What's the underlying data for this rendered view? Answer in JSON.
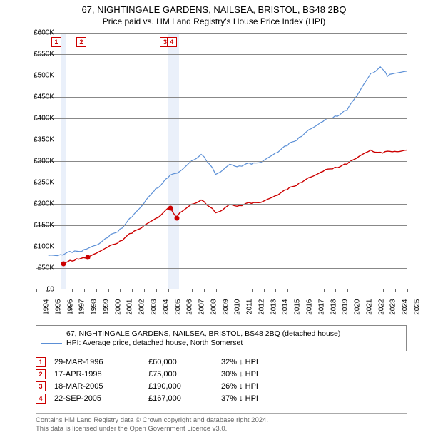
{
  "title": "67, NIGHTINGALE GARDENS, NAILSEA, BRISTOL, BS48 2BQ",
  "subtitle": "Price paid vs. HM Land Registry's House Price Index (HPI)",
  "chart": {
    "type": "line",
    "x_min_year": 1994,
    "x_max_year": 2025,
    "y_min": 0,
    "y_max": 600000,
    "y_step": 50000,
    "y_labels": [
      "£0",
      "£50K",
      "£100K",
      "£150K",
      "£200K",
      "£250K",
      "£300K",
      "£350K",
      "£400K",
      "£450K",
      "£500K",
      "£550K",
      "£600K"
    ],
    "x_labels": [
      "1994",
      "1995",
      "1996",
      "1997",
      "1998",
      "1999",
      "2000",
      "2001",
      "2002",
      "2003",
      "2004",
      "2005",
      "2006",
      "2007",
      "2008",
      "2009",
      "2010",
      "2011",
      "2012",
      "2013",
      "2014",
      "2015",
      "2016",
      "2017",
      "2018",
      "2019",
      "2020",
      "2021",
      "2022",
      "2023",
      "2024",
      "2025"
    ],
    "grid_color": "#888888",
    "background_color": "#ffffff",
    "series": [
      {
        "name": "property",
        "label": "67, NIGHTINGALE GARDENS, NAILSEA, BRISTOL, BS48 2BQ (detached house)",
        "color": "#cc0000",
        "width": 1.4,
        "points": [
          [
            1996.24,
            60000
          ],
          [
            1997.0,
            65000
          ],
          [
            1998.29,
            75000
          ],
          [
            1999.0,
            83000
          ],
          [
            2000.0,
            98000
          ],
          [
            2001.0,
            112000
          ],
          [
            2002.0,
            130000
          ],
          [
            2003.0,
            148000
          ],
          [
            2004.0,
            165000
          ],
          [
            2005.21,
            190000
          ],
          [
            2005.73,
            167000
          ],
          [
            2006.0,
            178000
          ],
          [
            2007.0,
            198000
          ],
          [
            2007.8,
            208000
          ],
          [
            2008.5,
            192000
          ],
          [
            2009.0,
            178000
          ],
          [
            2009.6,
            185000
          ],
          [
            2010.2,
            198000
          ],
          [
            2011.0,
            195000
          ],
          [
            2012.0,
            200000
          ],
          [
            2013.0,
            205000
          ],
          [
            2014.0,
            218000
          ],
          [
            2015.0,
            232000
          ],
          [
            2016.0,
            248000
          ],
          [
            2017.0,
            262000
          ],
          [
            2018.0,
            275000
          ],
          [
            2019.0,
            285000
          ],
          [
            2020.0,
            292000
          ],
          [
            2021.0,
            310000
          ],
          [
            2022.0,
            325000
          ],
          [
            2023.0,
            318000
          ],
          [
            2024.0,
            322000
          ],
          [
            2025.0,
            325000
          ]
        ]
      },
      {
        "name": "hpi",
        "label": "HPI: Average price, detached house, North Somerset",
        "color": "#5b8fd6",
        "width": 1.2,
        "points": [
          [
            1995.0,
            78000
          ],
          [
            1996.0,
            80000
          ],
          [
            1997.0,
            85000
          ],
          [
            1998.0,
            92000
          ],
          [
            1999.0,
            102000
          ],
          [
            2000.0,
            120000
          ],
          [
            2001.0,
            140000
          ],
          [
            2002.0,
            168000
          ],
          [
            2003.0,
            200000
          ],
          [
            2004.0,
            235000
          ],
          [
            2005.0,
            260000
          ],
          [
            2006.0,
            275000
          ],
          [
            2007.0,
            300000
          ],
          [
            2007.8,
            315000
          ],
          [
            2008.5,
            292000
          ],
          [
            2009.0,
            268000
          ],
          [
            2009.6,
            278000
          ],
          [
            2010.2,
            292000
          ],
          [
            2011.0,
            288000
          ],
          [
            2012.0,
            292000
          ],
          [
            2013.0,
            300000
          ],
          [
            2014.0,
            318000
          ],
          [
            2015.0,
            335000
          ],
          [
            2016.0,
            355000
          ],
          [
            2017.0,
            375000
          ],
          [
            2018.0,
            392000
          ],
          [
            2019.0,
            405000
          ],
          [
            2020.0,
            418000
          ],
          [
            2021.0,
            460000
          ],
          [
            2022.0,
            505000
          ],
          [
            2022.8,
            520000
          ],
          [
            2023.4,
            498000
          ],
          [
            2024.0,
            505000
          ],
          [
            2025.0,
            510000
          ]
        ]
      }
    ],
    "shade_bands": [
      {
        "from": 1996.0,
        "to": 1996.5
      },
      {
        "from": 2005.0,
        "to": 2005.9
      }
    ],
    "markers": [
      {
        "n": "1",
        "year": 1995.6
      },
      {
        "n": "2",
        "year": 1997.7
      },
      {
        "n": "3",
        "year": 2004.7
      },
      {
        "n": "4",
        "year": 2005.25
      }
    ],
    "sale_points": [
      {
        "year": 1996.24,
        "value": 60000
      },
      {
        "year": 1998.29,
        "value": 75000
      },
      {
        "year": 2005.21,
        "value": 190000
      },
      {
        "year": 2005.73,
        "value": 167000
      }
    ]
  },
  "legend_rows": [
    {
      "color": "#cc0000",
      "text": "67, NIGHTINGALE GARDENS, NAILSEA, BRISTOL, BS48 2BQ (detached house)"
    },
    {
      "color": "#5b8fd6",
      "text": "HPI: Average price, detached house, North Somerset"
    }
  ],
  "sales": [
    {
      "n": "1",
      "date": "29-MAR-1996",
      "price": "£60,000",
      "pct": "32% ↓ HPI"
    },
    {
      "n": "2",
      "date": "17-APR-1998",
      "price": "£75,000",
      "pct": "30% ↓ HPI"
    },
    {
      "n": "3",
      "date": "18-MAR-2005",
      "price": "£190,000",
      "pct": "26% ↓ HPI"
    },
    {
      "n": "4",
      "date": "22-SEP-2005",
      "price": "£167,000",
      "pct": "37% ↓ HPI"
    }
  ],
  "footer_line1": "Contains HM Land Registry data © Crown copyright and database right 2024.",
  "footer_line2": "This data is licensed under the Open Government Licence v3.0."
}
